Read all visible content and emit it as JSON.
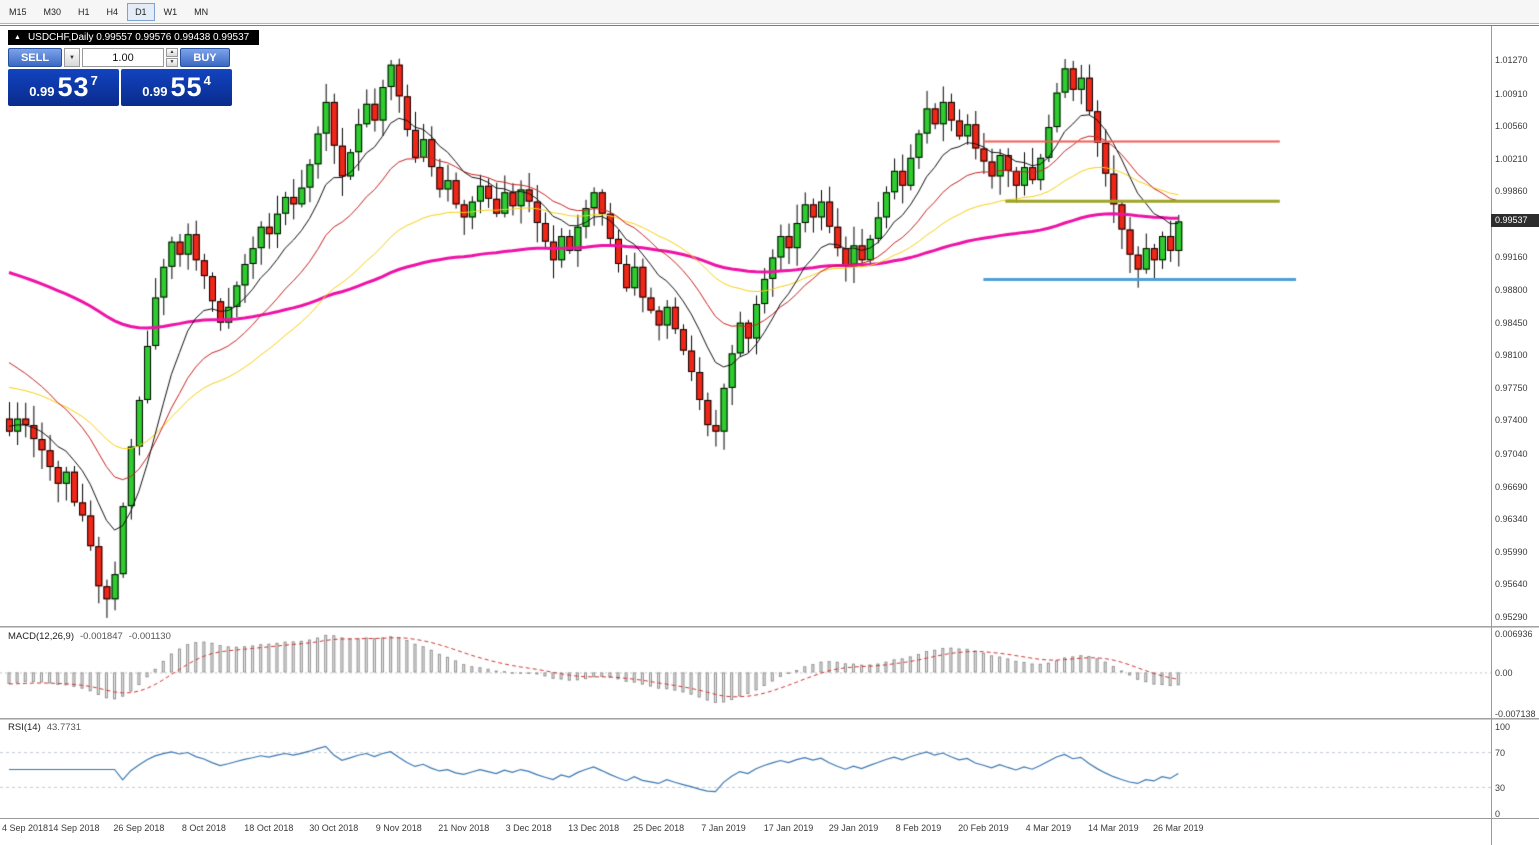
{
  "toolbar": {
    "timeframes": [
      "M15",
      "M30",
      "H1",
      "H4",
      "D1",
      "W1",
      "MN"
    ],
    "active": "D1"
  },
  "icons": {
    "collapse": "▲",
    "dropdown": "▼",
    "spinner_up": "▲",
    "spinner_down": "▼"
  },
  "chart": {
    "symbol_info": "USDCHF,Daily  0.99557 0.99576 0.99438 0.99537",
    "current_price": "0.99537"
  },
  "one_click": {
    "sell_label": "SELL",
    "buy_label": "BUY",
    "volume": "1.00",
    "sell_price": {
      "whole": "0.99",
      "pips": "53",
      "pipette": "7"
    },
    "buy_price": {
      "whole": "0.99",
      "pips": "55",
      "pipette": "4"
    }
  },
  "macd_panel": {
    "name": "MACD(12,26,9)",
    "value_main": "-0.001847",
    "value_signal": "-0.001130",
    "axis": [
      "0.006936",
      "0.00",
      "-0.007138"
    ]
  },
  "rsi_panel": {
    "name": "RSI(14)",
    "value": "43.7731",
    "axis": [
      "100",
      "70",
      "30",
      "0"
    ]
  },
  "chart_data": {
    "type": "candlestick",
    "symbol": "USDCHF",
    "timeframe": "Daily",
    "quote": {
      "open": 0.99557,
      "high": 0.99576,
      "low": 0.99438,
      "close": 0.99537,
      "bid": 0.99537,
      "ask": 0.99554
    },
    "price_scale": {
      "top": 1.0127,
      "bottom": 0.9529
    },
    "price_axis_labels": [
      "1.01270",
      "1.00910",
      "1.00560",
      "1.00210",
      "0.99860",
      "0.99160",
      "0.98800",
      "0.98450",
      "0.98100",
      "0.97750",
      "0.97400",
      "0.97040",
      "0.96690",
      "0.96340",
      "0.95990",
      "0.95640",
      "0.95290"
    ],
    "dates": [
      "4 Sep 2018",
      "14 Sep 2018",
      "26 Sep 2018",
      "8 Oct 2018",
      "18 Oct 2018",
      "30 Oct 2018",
      "9 Nov 2018",
      "21 Nov 2018",
      "3 Dec 2018",
      "13 Dec 2018",
      "25 Dec 2018",
      "7 Jan 2019",
      "17 Jan 2019",
      "29 Jan 2019",
      "8 Feb 2019",
      "20 Feb 2019",
      "4 Mar 2019",
      "14 Mar 2019",
      "26 Mar 2019"
    ],
    "candles_per_tick": 8,
    "closes": [
      0.9728,
      0.9742,
      0.9735,
      0.972,
      0.9708,
      0.969,
      0.9672,
      0.9685,
      0.9652,
      0.9638,
      0.9605,
      0.9562,
      0.9548,
      0.9575,
      0.9648,
      0.9712,
      0.9762,
      0.982,
      0.9872,
      0.9905,
      0.9932,
      0.9918,
      0.994,
      0.9912,
      0.9895,
      0.9868,
      0.9845,
      0.9862,
      0.9885,
      0.9908,
      0.9925,
      0.9948,
      0.994,
      0.9962,
      0.998,
      0.9972,
      0.999,
      1.0015,
      1.0048,
      1.0082,
      1.0035,
      1.0002,
      1.0028,
      1.0058,
      1.008,
      1.0062,
      1.0098,
      1.0122,
      1.0088,
      1.0052,
      1.0022,
      1.0042,
      1.0012,
      0.9988,
      0.9998,
      0.9972,
      0.9958,
      0.9975,
      0.9992,
      0.9978,
      0.9962,
      0.9985,
      0.997,
      0.9988,
      0.9975,
      0.9952,
      0.9932,
      0.9912,
      0.9938,
      0.9922,
      0.9948,
      0.9968,
      0.9985,
      0.9962,
      0.9935,
      0.9908,
      0.9882,
      0.9905,
      0.9872,
      0.9858,
      0.9842,
      0.9862,
      0.9838,
      0.9815,
      0.9792,
      0.9762,
      0.9735,
      0.9728,
      0.9775,
      0.9812,
      0.9845,
      0.9828,
      0.9865,
      0.9892,
      0.9915,
      0.9938,
      0.9925,
      0.9952,
      0.9972,
      0.9958,
      0.9975,
      0.9948,
      0.9925,
      0.9905,
      0.9928,
      0.9912,
      0.9935,
      0.9958,
      0.9985,
      1.0008,
      0.9992,
      1.0022,
      1.0048,
      1.0075,
      1.0058,
      1.0082,
      1.0062,
      1.0045,
      1.0058,
      1.0032,
      1.0018,
      1.0002,
      1.0025,
      1.0008,
      0.9992,
      1.0012,
      0.9998,
      1.0022,
      1.0055,
      1.0092,
      1.0118,
      1.0095,
      1.0108,
      1.0072,
      1.0038,
      1.0005,
      0.9972,
      0.9945,
      0.9918,
      0.9902,
      0.9925,
      0.9912,
      0.9938,
      0.9922,
      0.99537
    ],
    "wick_overrides": {
      "12": {
        "low": 0.9528
      },
      "47": {
        "high": 1.0127
      },
      "87": {
        "low": 0.9712
      },
      "130": {
        "high": 1.0128
      }
    },
    "colors": {
      "up": "#2ecc2e",
      "down": "#f02718",
      "outline": "#000000"
    },
    "ma_lines": [
      {
        "period": 10,
        "seed": 0.9735,
        "color": "#111111",
        "width": 1
      },
      {
        "period": 20,
        "seed": 0.981,
        "color": "#c62222",
        "width": 1
      },
      {
        "period": 40,
        "seed": 0.9778,
        "color": "#f6cf17",
        "width": 1
      },
      {
        "period": 110,
        "seed": 0.9902,
        "color": "#ee12a6",
        "width": 3
      }
    ],
    "hlines": [
      {
        "price": 1.004,
        "from_index": 120,
        "to_index": 156.5,
        "color": "#f25b52",
        "width": 2
      },
      {
        "price": 0.9976,
        "from_index": 122.7,
        "to_index": 156.5,
        "color": "#9ea426",
        "width": 3
      },
      {
        "price": 0.9892,
        "from_index": 120,
        "to_index": 158.5,
        "color": "#4f9fd6",
        "width": 3
      }
    ],
    "macd": {
      "fast": 12,
      "slow": 26,
      "signal": 9,
      "current_main": -0.001847,
      "current_signal": -0.00113,
      "scale_max": 0.006936,
      "scale_min": -0.007138
    },
    "rsi": {
      "period": 14,
      "current": 43.7731,
      "levels": [
        70,
        30
      ],
      "scale_max": 100,
      "scale_min": 0
    }
  }
}
